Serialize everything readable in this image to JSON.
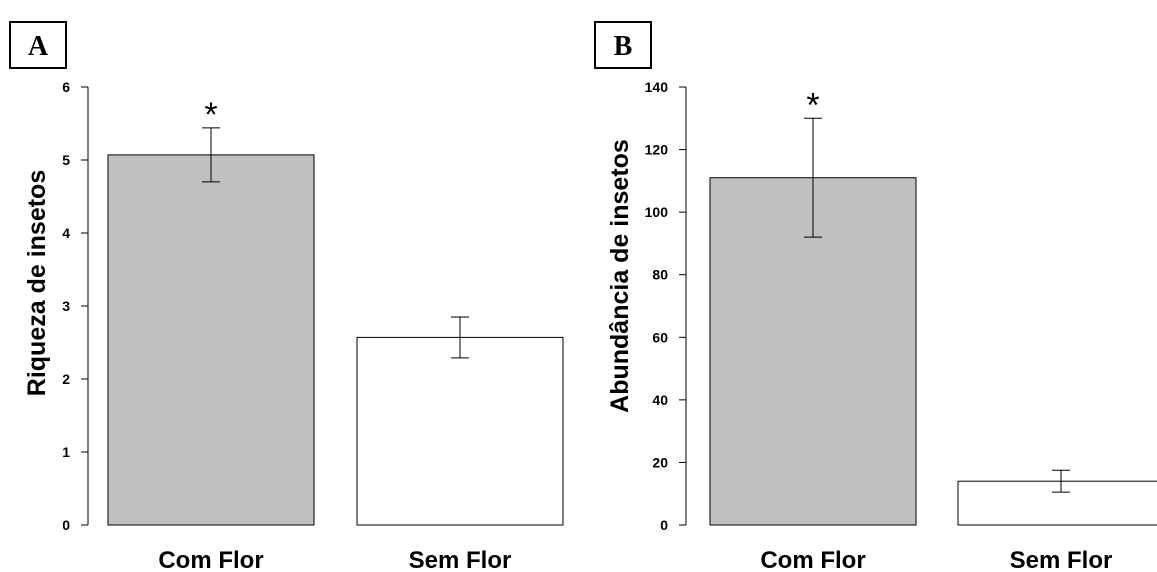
{
  "chart_data": [
    {
      "type": "bar",
      "panel_label": "A",
      "categories": [
        "Com Flor",
        "Sem Flor"
      ],
      "values": [
        5.07,
        2.57
      ],
      "error": [
        0.37,
        0.28
      ],
      "annotations": [
        "*",
        ""
      ],
      "bar_colors": [
        "#c0c0c0",
        "#ffffff"
      ],
      "ylabel": "Riqueza de insetos",
      "ylim": [
        0,
        6
      ],
      "yticks": [
        0,
        1,
        2,
        3,
        4,
        5,
        6
      ],
      "grid": false
    },
    {
      "type": "bar",
      "panel_label": "B",
      "categories": [
        "Com Flor",
        "Sem Flor"
      ],
      "values": [
        111,
        14
      ],
      "error": [
        19,
        3.5
      ],
      "annotations": [
        "*",
        ""
      ],
      "bar_colors": [
        "#c0c0c0",
        "#ffffff"
      ],
      "ylabel": "Abundância de insetos",
      "ylim": [
        0,
        140
      ],
      "yticks": [
        0,
        20,
        40,
        60,
        80,
        100,
        120,
        140
      ],
      "grid": false
    }
  ]
}
